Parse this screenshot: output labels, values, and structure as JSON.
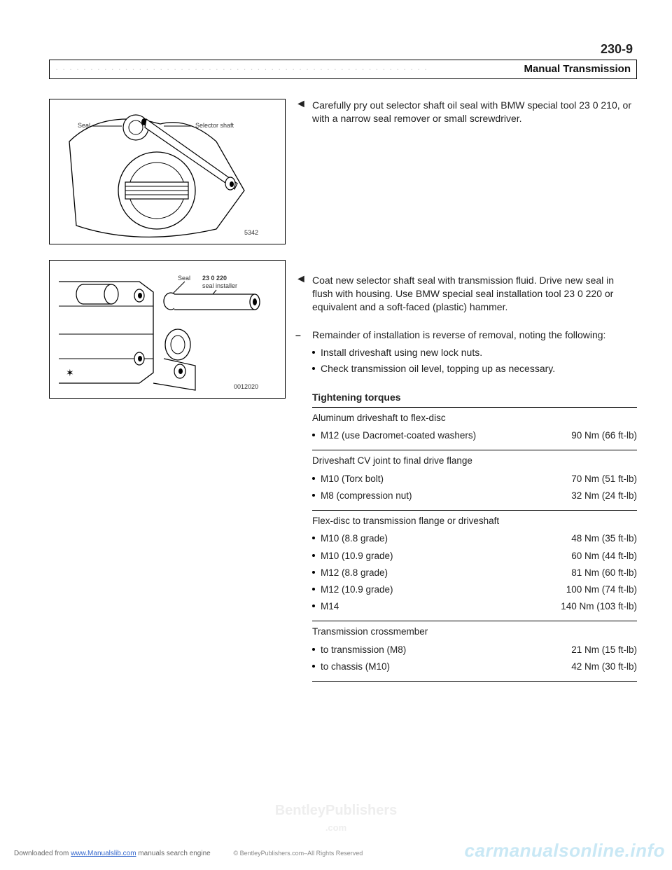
{
  "page_number": "230-9",
  "section_title": "Manual Transmission",
  "fig1": {
    "label_seal": "Seal",
    "label_selector": "Selector shaft",
    "code": "5342"
  },
  "fig2": {
    "label_seal": "Seal",
    "label_tool_no": "23 0 220",
    "label_tool_name": "seal installer",
    "code": "0012020"
  },
  "step1": "Carefully pry out selector shaft oil seal with BMW special tool 23 0 210, or with a narrow seal remover or small screwdriver.",
  "step2": "Coat new selector shaft seal with transmission fluid. Drive new seal in flush with housing. Use BMW special seal installation tool 23 0 220 or equivalent and a soft-faced (plastic) hammer.",
  "step3_intro": "Remainder of installation is reverse of removal, noting the following:",
  "step3_bullets": [
    "Install driveshaft using new lock nuts.",
    "Check transmission oil level, topping up as necessary."
  ],
  "torques": {
    "title": "Tightening torques",
    "sections": [
      {
        "heading": "Aluminum driveshaft to flex-disc",
        "rows": [
          {
            "label": "M12 (use Dacromet-coated washers)",
            "value": "90 Nm (66 ft-lb)"
          }
        ]
      },
      {
        "heading": "Driveshaft CV joint to final drive flange",
        "rows": [
          {
            "label": "M10 (Torx bolt)",
            "value": "70 Nm (51 ft-lb)"
          },
          {
            "label": "M8 (compression nut)",
            "value": "32 Nm (24 ft-lb)"
          }
        ]
      },
      {
        "heading": "Flex-disc to transmission flange or driveshaft",
        "rows": [
          {
            "label": "M10 (8.8 grade)",
            "value": "48 Nm (35 ft-lb)"
          },
          {
            "label": "M10 (10.9 grade)",
            "value": "60 Nm (44 ft-lb)"
          },
          {
            "label": "M12 (8.8 grade)",
            "value": "81 Nm (60 ft-lb)"
          },
          {
            "label": "M12 (10.9 grade)",
            "value": "100 Nm (74 ft-lb)"
          },
          {
            "label": "M14",
            "value": "140 Nm (103 ft-lb)"
          }
        ]
      },
      {
        "heading": "Transmission crossmember",
        "rows": [
          {
            "label": "to transmission (M8)",
            "value": "21 Nm (15 ft-lb)"
          },
          {
            "label": "to chassis (M10)",
            "value": "42 Nm (30 ft-lb)"
          }
        ]
      }
    ]
  },
  "footer": {
    "downloaded_prefix": "Downloaded from ",
    "link_text": "www.Manualslib.com",
    "downloaded_suffix": " manuals search engine",
    "copyright": "© BentleyPublishers.com–All Rights Reserved",
    "side_mark": "carmanualsonline.info"
  }
}
